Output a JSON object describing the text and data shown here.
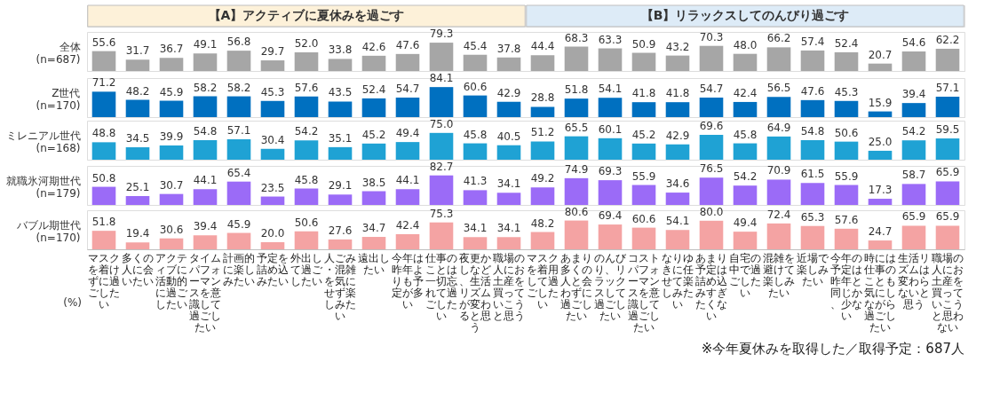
{
  "chart_data": [
    {
      "type": "bar",
      "ylabel": "全体\n(n=687)",
      "tick_labels": false,
      "color": "#a6a6a6",
      "categories": [
        "マスクを着けずに過ごしたい",
        "多くの人に会いたい",
        "アクティブに活動的に過ごしたい",
        "タイムパフォーマンスを意識して過ごしたい",
        "計画的に楽しみたい",
        "予定を詰め込みたい",
        "外出して過ごしたい",
        "人ごみ・混雑を気にせず楽しみたい",
        "遠出したい",
        "今年は昨年よりも予定が多い",
        "仕事のことは一切忘れて過ごしたい",
        "夜更かしなど、生活リズムが変わると思う",
        "職場の人にお土産を買っていこうと思う",
        "マスクを着用して過ごしたい",
        "あまり多くの人と会わずに過ごしたい",
        "のんびり、リラックスして過ごしたい",
        "コストパフォーマンスを意識して過ごしたい",
        "なりゆきに任せて楽しみたい",
        "あまり予定は詰め込みすぎたくない",
        "自宅の中で過ごしたい",
        "混雑を避けて楽しみたい",
        "近場で楽しみたい",
        "今年の予定は昨年と同じか、少ない",
        "時には仕事のことも気にしながら過ごしたい",
        "生活リズムは変わらないと思う",
        "職場の人にお土産を買っていこうと思わない"
      ],
      "values": [
        55.6,
        31.7,
        36.7,
        49.1,
        56.8,
        29.7,
        52.0,
        33.8,
        42.6,
        47.6,
        79.3,
        45.4,
        37.8,
        44.4,
        68.3,
        63.3,
        50.9,
        43.2,
        70.3,
        48.0,
        66.2,
        57.4,
        52.4,
        20.7,
        54.6,
        62.2
      ],
      "value_labels": [
        "55.6",
        "31.7",
        "36.7",
        "49.1",
        "56.8",
        "29.7",
        "52.0",
        "33.8",
        "42.6",
        "47.6",
        "79.3",
        "45.4",
        "37.8",
        "44.4",
        "68.3",
        "63.3",
        "50.9",
        "43.2",
        "70.3",
        "48.0",
        "66.2",
        "57.4",
        "52.4",
        "20.7",
        "54.6",
        "62.2"
      ],
      "annotations": [
        "【A】アクティブに夏休みを過ごす",
        "【B】リラックスしてのんびり過ごす"
      ]
    },
    {
      "type": "bar",
      "ylabel": "Z世代\n(n=170)",
      "tick_labels": false,
      "color": "#0070c0",
      "categories": [
        "マスクを着けずに過ごしたい",
        "多くの人に会いたい",
        "アクティブに活動的に過ごしたい",
        "タイムパフォーマンスを意識して過ごしたい",
        "計画的に楽しみたい",
        "予定を詰め込みたい",
        "外出して過ごしたい",
        "人ごみ・混雑を気にせず楽しみたい",
        "遠出したい",
        "今年は昨年よりも予定が多い",
        "仕事のことは一切忘れて過ごしたい",
        "夜更かしなど、生活リズムが変わると思う",
        "職場の人にお土産を買っていこうと思う",
        "マスクを着用して過ごしたい",
        "あまり多くの人と会わずに過ごしたい",
        "のんびり、リラックスして過ごしたい",
        "コストパフォーマンスを意識して過ごしたい",
        "なりゆきに任せて楽しみたい",
        "あまり予定は詰め込みすぎたくない",
        "自宅の中で過ごしたい",
        "混雑を避けて楽しみたい",
        "近場で楽しみたい",
        "今年の予定は昨年と同じか、少ない",
        "時には仕事のことも気にしながら過ごしたい",
        "生活リズムは変わらないと思う",
        "職場の人にお土産を買っていこうと思わない"
      ],
      "values": [
        71.2,
        48.2,
        45.9,
        58.2,
        58.2,
        45.3,
        57.6,
        43.5,
        52.4,
        54.7,
        84.1,
        60.6,
        42.9,
        28.8,
        51.8,
        54.1,
        41.8,
        41.8,
        54.7,
        42.4,
        56.5,
        47.6,
        45.3,
        15.9,
        39.4,
        57.1
      ],
      "value_labels": [
        "71.2",
        "48.2",
        "45.9",
        "58.2",
        "58.2",
        "45.3",
        "57.6",
        "43.5",
        "52.4",
        "54.7",
        "84.1",
        "60.6",
        "42.9",
        "28.8",
        "51.8",
        "54.1",
        "41.8",
        "41.8",
        "54.7",
        "42.4",
        "56.5",
        "47.6",
        "45.3",
        "15.9",
        "39.4",
        "57.1"
      ]
    },
    {
      "type": "bar",
      "ylabel": "ミレニアル世代\n(n=168)",
      "tick_labels": false,
      "color": "#1fa2d4",
      "categories": [
        "マスクを着けずに過ごしたい",
        "多くの人に会いたい",
        "アクティブに活動的に過ごしたい",
        "タイムパフォーマンスを意識して過ごしたい",
        "計画的に楽しみたい",
        "予定を詰め込みたい",
        "外出して過ごしたい",
        "人ごみ・混雑を気にせず楽しみたい",
        "遠出したい",
        "今年は昨年よりも予定が多い",
        "仕事のことは一切忘れて過ごしたい",
        "夜更かしなど、生活リズムが変わると思う",
        "職場の人にお土産を買っていこうと思う",
        "マスクを着用して過ごしたい",
        "あまり多くの人と会わずに過ごしたい",
        "のんびり、リラックスして過ごしたい",
        "コストパフォーマンスを意識して過ごしたい",
        "なりゆきに任せて楽しみたい",
        "あまり予定は詰め込みすぎたくない",
        "自宅の中で過ごしたい",
        "混雑を避けて楽しみたい",
        "近場で楽しみたい",
        "今年の予定は昨年と同じか、少ない",
        "時には仕事のことも気にしながら過ごしたい",
        "生活リズムは変わらないと思う",
        "職場の人にお土産を買っていこうと思わない"
      ],
      "values": [
        48.8,
        34.5,
        39.9,
        54.8,
        57.1,
        30.4,
        54.2,
        35.1,
        45.2,
        49.4,
        75.0,
        45.8,
        40.5,
        51.2,
        65.5,
        60.1,
        45.2,
        42.9,
        69.6,
        45.8,
        64.9,
        54.8,
        50.6,
        25.0,
        54.2,
        59.5
      ],
      "value_labels": [
        "48.8",
        "34.5",
        "39.9",
        "54.8",
        "57.1",
        "30.4",
        "54.2",
        "35.1",
        "45.2",
        "49.4",
        "75.0",
        "45.8",
        "40.5",
        "51.2",
        "65.5",
        "60.1",
        "45.2",
        "42.9",
        "69.6",
        "45.8",
        "64.9",
        "54.8",
        "50.6",
        "25.0",
        "54.2",
        "59.5"
      ]
    },
    {
      "type": "bar",
      "ylabel": "就職氷河期世代\n(n=179)",
      "tick_labels": false,
      "color": "#9b6bf7",
      "categories": [
        "マスクを着けずに過ごしたい",
        "多くの人に会いたい",
        "アクティブに活動的に過ごしたい",
        "タイムパフォーマンスを意識して過ごしたい",
        "計画的に楽しみたい",
        "予定を詰め込みたい",
        "外出して過ごしたい",
        "人ごみ・混雑を気にせず楽しみたい",
        "遠出したい",
        "今年は昨年よりも予定が多い",
        "仕事のことは一切忘れて過ごしたい",
        "夜更かしなど、生活リズムが変わると思う",
        "職場の人にお土産を買っていこうと思う",
        "マスクを着用して過ごしたい",
        "あまり多くの人と会わずに過ごしたい",
        "のんびり、リラックスして過ごしたい",
        "コストパフォーマンスを意識して過ごしたい",
        "なりゆきに任せて楽しみたい",
        "あまり予定は詰め込みすぎたくない",
        "自宅の中で過ごしたい",
        "混雑を避けて楽しみたい",
        "近場で楽しみたい",
        "今年の予定は昨年と同じか、少ない",
        "時には仕事のことも気にしながら過ごしたい",
        "生活リズムは変わらないと思う",
        "職場の人にお土産を買っていこうと思わない"
      ],
      "values": [
        50.8,
        25.1,
        30.7,
        44.1,
        65.4,
        23.5,
        45.8,
        29.1,
        38.5,
        44.1,
        82.7,
        41.3,
        34.1,
        49.2,
        74.9,
        69.3,
        55.9,
        34.6,
        76.5,
        54.2,
        70.9,
        61.5,
        55.9,
        17.3,
        58.7,
        65.9
      ],
      "value_labels": [
        "50.8",
        "25.1",
        "30.7",
        "44.1",
        "65.4",
        "23.5",
        "45.8",
        "29.1",
        "38.5",
        "44.1",
        "82.7",
        "41.3",
        "34.1",
        "49.2",
        "74.9",
        "69.3",
        "55.9",
        "34.6",
        "76.5",
        "54.2",
        "70.9",
        "61.5",
        "55.9",
        "17.3",
        "58.7",
        "65.9"
      ]
    },
    {
      "type": "bar",
      "ylabel": "バブル期世代\n(n=170)",
      "tick_labels": "x",
      "color": "#f4a3a3",
      "categories": [
        "マスクを着けずに過ごしたい",
        "多くの人に会いたい",
        "アクティブに活動的に過ごしたい",
        "タイムパフォーマンスを意識して過ごしたい",
        "計画的に楽しみたい",
        "予定を詰め込みたい",
        "外出して過ごしたい",
        "人ごみ・混雑を気にせず楽しみたい",
        "遠出したい",
        "今年は昨年よりも予定が多い",
        "仕事のことは一切忘れて過ごしたい",
        "夜更かしなど、生活リズムが変わると思う",
        "職場の人にお土産を買っていこうと思う",
        "マスクを着用して過ごしたい",
        "あまり多くの人と会わずに過ごしたい",
        "のんびり、リラックスして過ごしたい",
        "コストパフォーマンスを意識して過ごしたい",
        "なりゆきに任せて楽しみたい",
        "あまり予定は詰め込みすぎたくない",
        "自宅の中で過ごしたい",
        "混雑を避けて楽しみたい",
        "近場で楽しみたい",
        "今年の予定は昨年と同じか、少ない",
        "時には仕事のことも気にしながら過ごしたい",
        "生活リズムは変わらないと思う",
        "職場の人にお土産を買っていこうと思わない"
      ],
      "values": [
        51.8,
        19.4,
        30.6,
        39.4,
        45.9,
        20.0,
        50.6,
        27.6,
        34.7,
        42.4,
        75.3,
        34.1,
        34.1,
        48.2,
        80.6,
        69.4,
        60.6,
        54.1,
        80.0,
        49.4,
        72.4,
        65.3,
        57.6,
        24.7,
        65.9,
        65.9
      ],
      "value_labels": [
        "51.8",
        "19.4",
        "30.6",
        "39.4",
        "45.9",
        "20.0",
        "50.6",
        "27.6",
        "34.7",
        "42.4",
        "75.3",
        "34.1",
        "34.1",
        "48.2",
        "80.6",
        "69.4",
        "60.6",
        "54.1",
        "80.0",
        "49.4",
        "72.4",
        "65.3",
        "57.6",
        "24.7",
        "65.9",
        "65.9"
      ],
      "annotations": [
        "(%)",
        "※今年夏休みを取得した／取得予定：687人"
      ]
    }
  ]
}
